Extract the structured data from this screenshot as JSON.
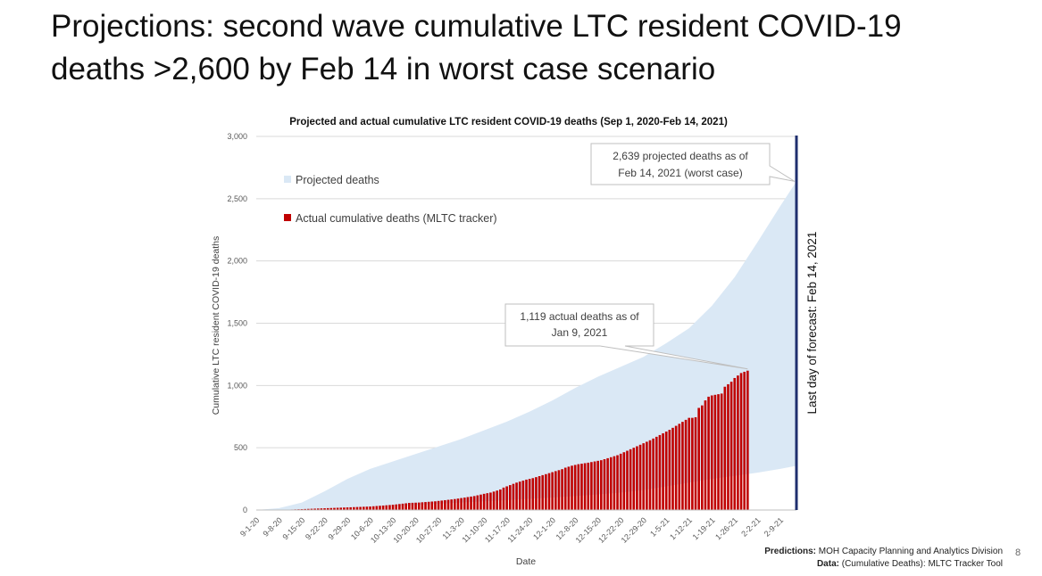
{
  "slide": {
    "title_line1": "Projections: second wave cumulative LTC resident COVID-19",
    "title_line2": "deaths >2,600 by Feb 14 in worst case scenario",
    "page_number": "8"
  },
  "footer": {
    "predictions_label": "Predictions:",
    "predictions_text": " MOH Capacity Planning and Analytics Division",
    "data_label": "Data:",
    "data_text": " (Cumulative Deaths): MLTC Tracker Tool"
  },
  "chart_data": {
    "type": "area",
    "title": "Projected and actual cumulative LTC resident COVID-19 deaths (Sep 1, 2020-Feb 14, 2021)",
    "xlabel": "Date",
    "ylabel": "Cumulative LTC resident COVID-19 deaths",
    "ylim": [
      0,
      3000
    ],
    "yticks": [
      0,
      500,
      1000,
      1500,
      2000,
      2500,
      3000
    ],
    "ytick_labels": [
      "0",
      "500",
      "1,000",
      "1,500",
      "2,000",
      "2,500",
      "3,000"
    ],
    "xlim_days": [
      0,
      166
    ],
    "x_tick_labels": [
      "9-1-20",
      "9-8-20",
      "9-15-20",
      "9-22-20",
      "9-29-20",
      "10-6-20",
      "10-13-20",
      "10-20-20",
      "10-27-20",
      "11-3-20",
      "11-10-20",
      "11-17-20",
      "11-24-20",
      "12-1-20",
      "12-8-20",
      "12-15-20",
      "12-22-20",
      "12-29-20",
      "1-5-21",
      "1-12-21",
      "1-19-21",
      "1-26-21",
      "2-2-21",
      "2-9-21"
    ],
    "grid": true,
    "legend_position": "top-left",
    "legend": [
      "Projected deaths",
      "Actual cumulative deaths (MLTC tracker)"
    ],
    "colors": {
      "projected": "#dae8f5",
      "actual": "#c00000",
      "forecast_line": "#1f2f6e"
    },
    "projected_upper": {
      "x_days": [
        0,
        7,
        14,
        21,
        28,
        35,
        42,
        49,
        56,
        63,
        70,
        77,
        84,
        91,
        98,
        105,
        112,
        119,
        126,
        133,
        140,
        147,
        154,
        161,
        166
      ],
      "values": [
        0,
        15,
        60,
        150,
        250,
        330,
        390,
        450,
        510,
        570,
        640,
        710,
        790,
        880,
        980,
        1070,
        1150,
        1230,
        1340,
        1460,
        1640,
        1870,
        2150,
        2440,
        2639
      ]
    },
    "projected_lower": {
      "x_days": [
        0,
        7,
        14,
        21,
        28,
        35,
        42,
        49,
        56,
        63,
        70,
        77,
        84,
        91,
        98,
        105,
        112,
        119,
        126,
        133,
        140,
        147,
        154,
        161,
        166
      ],
      "values": [
        0,
        0,
        5,
        10,
        15,
        22,
        30,
        40,
        50,
        60,
        70,
        80,
        90,
        100,
        112,
        125,
        140,
        160,
        190,
        220,
        250,
        275,
        300,
        330,
        355
      ]
    },
    "actual": {
      "start_day": 8,
      "values": [
        1,
        2,
        3,
        4,
        5,
        6,
        7,
        8,
        9,
        10,
        11,
        12,
        13,
        14,
        15,
        16,
        17,
        18,
        19,
        20,
        21,
        22,
        23,
        24,
        25,
        26,
        27,
        28,
        30,
        32,
        34,
        36,
        38,
        40,
        42,
        45,
        48,
        51,
        54,
        57,
        58,
        59,
        60,
        62,
        64,
        66,
        68,
        70,
        73,
        76,
        79,
        82,
        85,
        88,
        92,
        96,
        100,
        104,
        108,
        112,
        118,
        124,
        130,
        135,
        140,
        148,
        156,
        165,
        180,
        190,
        200,
        210,
        220,
        228,
        236,
        244,
        250,
        256,
        264,
        272,
        280,
        288,
        296,
        304,
        312,
        320,
        328,
        340,
        348,
        356,
        362,
        368,
        372,
        376,
        380,
        385,
        390,
        395,
        400,
        408,
        416,
        424,
        432,
        440,
        452,
        464,
        476,
        488,
        500,
        512,
        524,
        536,
        548,
        560,
        574,
        588,
        602,
        616,
        630,
        644,
        660,
        676,
        692,
        708,
        724,
        740,
        740,
        745,
        820,
        840,
        880,
        910,
        920,
        925,
        930,
        935,
        990,
        1010,
        1030,
        1060,
        1080,
        1100,
        1110,
        1119
      ]
    },
    "annotations": [
      {
        "text_line1": "1,119 actual deaths as of",
        "text_line2": "Jan 9, 2021"
      },
      {
        "text_line1": "2,639 projected deaths as of",
        "text_line2": "Feb 14, 2021 (worst case)"
      }
    ],
    "forecast_line_label": "Last day of forecast: Feb 14, 2021"
  }
}
